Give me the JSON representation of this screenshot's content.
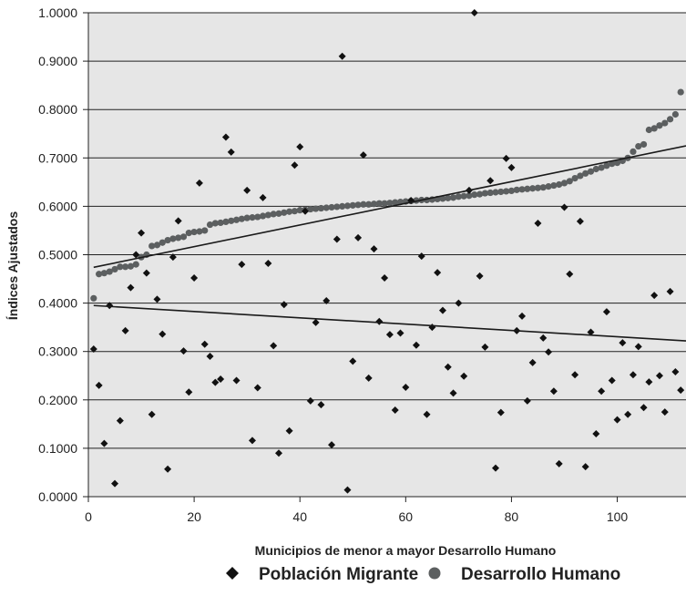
{
  "chart_data": {
    "type": "scatter",
    "title": "",
    "xlabel": "Municipios de menor a mayor Desarrollo Humano",
    "ylabel": "Índices Ajustados",
    "xlim": [
      0,
      113
    ],
    "ylim": [
      0,
      1
    ],
    "x_ticks": [
      "0",
      "20",
      "40",
      "60",
      "80",
      "100"
    ],
    "y_ticks": [
      "0.0000",
      "0.1000",
      "0.2000",
      "0.3000",
      "0.4000",
      "0.5000",
      "0.6000",
      "0.7000",
      "0.8000",
      "0.9000",
      "1.0000"
    ],
    "grid": "horizontal",
    "legend_position": "bottom",
    "series": [
      {
        "name": "Población Migrante",
        "marker": "diamond",
        "color": "#111111",
        "x": [
          1,
          2,
          3,
          4,
          5,
          6,
          7,
          8,
          9,
          10,
          11,
          12,
          13,
          14,
          15,
          16,
          17,
          18,
          19,
          20,
          21,
          22,
          23,
          24,
          25,
          26,
          27,
          28,
          29,
          30,
          31,
          32,
          33,
          34,
          35,
          36,
          37,
          38,
          39,
          40,
          41,
          42,
          43,
          44,
          45,
          46,
          47,
          48,
          49,
          50,
          51,
          52,
          53,
          54,
          55,
          56,
          57,
          58,
          59,
          60,
          61,
          62,
          63,
          64,
          65,
          66,
          67,
          68,
          69,
          70,
          71,
          72,
          73,
          74,
          75,
          76,
          77,
          78,
          79,
          80,
          81,
          82,
          83,
          84,
          85,
          86,
          87,
          88,
          89,
          90,
          91,
          92,
          93,
          94,
          95,
          96,
          97,
          98,
          99,
          100,
          101,
          102,
          103,
          104,
          105,
          106,
          107,
          108,
          109,
          110,
          111,
          112
        ],
        "y": [
          0.305,
          0.23,
          0.11,
          0.395,
          0.027,
          0.157,
          0.343,
          0.432,
          0.5,
          0.545,
          0.462,
          0.17,
          0.408,
          0.336,
          0.057,
          0.495,
          0.57,
          0.301,
          0.216,
          0.452,
          0.648,
          0.315,
          0.29,
          0.236,
          0.243,
          0.743,
          0.712,
          0.24,
          0.48,
          0.633,
          0.116,
          0.225,
          0.618,
          0.482,
          0.312,
          0.09,
          0.397,
          0.136,
          0.685,
          0.723,
          0.59,
          0.198,
          0.36,
          0.19,
          0.405,
          0.107,
          0.532,
          0.91,
          0.014,
          0.28,
          0.535,
          0.706,
          0.245,
          0.512,
          0.362,
          0.452,
          0.335,
          0.179,
          0.338,
          0.226,
          0.612,
          0.313,
          0.497,
          0.17,
          0.35,
          0.463,
          0.385,
          0.268,
          0.214,
          0.4,
          0.249,
          0.633,
          1.0,
          0.456,
          0.309,
          0.653,
          0.059,
          0.174,
          0.699,
          0.68,
          0.343,
          0.373,
          0.198,
          0.277,
          0.565,
          0.328,
          0.299,
          0.218,
          0.068,
          0.598,
          0.46,
          0.252,
          0.569,
          0.062,
          0.34,
          0.13,
          0.218,
          0.382,
          0.24,
          0.159,
          0.318,
          0.17,
          0.252,
          0.31,
          0.184,
          0.237,
          0.416,
          0.25,
          0.175,
          0.424,
          0.258,
          0.22
        ]
      },
      {
        "name": "Desarrollo Humano",
        "marker": "circle",
        "color": "#5c5f60",
        "x": [
          1,
          2,
          3,
          4,
          5,
          6,
          7,
          8,
          9,
          10,
          11,
          12,
          13,
          14,
          15,
          16,
          17,
          18,
          19,
          20,
          21,
          22,
          23,
          24,
          25,
          26,
          27,
          28,
          29,
          30,
          31,
          32,
          33,
          34,
          35,
          36,
          37,
          38,
          39,
          40,
          41,
          42,
          43,
          44,
          45,
          46,
          47,
          48,
          49,
          50,
          51,
          52,
          53,
          54,
          55,
          56,
          57,
          58,
          59,
          60,
          61,
          62,
          63,
          64,
          65,
          66,
          67,
          68,
          69,
          70,
          71,
          72,
          73,
          74,
          75,
          76,
          77,
          78,
          79,
          80,
          81,
          82,
          83,
          84,
          85,
          86,
          87,
          88,
          89,
          90,
          91,
          92,
          93,
          94,
          95,
          96,
          97,
          98,
          99,
          100,
          101,
          102,
          103,
          104,
          105,
          106,
          107,
          108,
          109,
          110,
          111,
          112
        ],
        "y": [
          0.41,
          0.46,
          0.462,
          0.465,
          0.47,
          0.475,
          0.475,
          0.476,
          0.48,
          0.495,
          0.5,
          0.518,
          0.52,
          0.525,
          0.53,
          0.533,
          0.535,
          0.537,
          0.545,
          0.547,
          0.548,
          0.55,
          0.562,
          0.565,
          0.566,
          0.568,
          0.57,
          0.572,
          0.574,
          0.576,
          0.577,
          0.578,
          0.58,
          0.582,
          0.584,
          0.585,
          0.587,
          0.589,
          0.59,
          0.592,
          0.593,
          0.594,
          0.595,
          0.596,
          0.597,
          0.598,
          0.599,
          0.6,
          0.601,
          0.602,
          0.603,
          0.604,
          0.604,
          0.605,
          0.606,
          0.606,
          0.607,
          0.608,
          0.609,
          0.61,
          0.611,
          0.612,
          0.613,
          0.613,
          0.614,
          0.615,
          0.616,
          0.617,
          0.618,
          0.62,
          0.621,
          0.622,
          0.624,
          0.625,
          0.627,
          0.628,
          0.629,
          0.63,
          0.631,
          0.632,
          0.634,
          0.635,
          0.636,
          0.637,
          0.638,
          0.639,
          0.641,
          0.643,
          0.645,
          0.648,
          0.652,
          0.658,
          0.663,
          0.668,
          0.672,
          0.677,
          0.68,
          0.684,
          0.688,
          0.69,
          0.694,
          0.7,
          0.713,
          0.724,
          0.728,
          0.758,
          0.761,
          0.767,
          0.772,
          0.78,
          0.79,
          0.836
        ]
      }
    ],
    "trendlines": [
      {
        "series": "Desarrollo Humano",
        "x": [
          1,
          113
        ],
        "y": [
          0.474,
          0.725
        ]
      },
      {
        "series": "Población Migrante",
        "x": [
          1,
          113
        ],
        "y": [
          0.395,
          0.322
        ]
      }
    ]
  }
}
